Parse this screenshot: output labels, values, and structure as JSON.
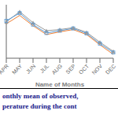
{
  "chart_data": {
    "type": "line",
    "xlabel": "Name of Months",
    "categories": [
      "APR",
      "MAY",
      "JUN",
      "JUL",
      "AUG",
      "SEP",
      "OCT",
      "NOV",
      "DEC"
    ],
    "series": [
      {
        "color": "#999999",
        "marker": "triangle",
        "values": [
          28.5,
          31.2,
          28.3,
          26.2,
          26.5,
          27.0,
          25.8,
          23.2,
          20.8
        ]
      },
      {
        "color": "#5b9bd5",
        "marker": "square",
        "values": [
          28.8,
          30.8,
          27.8,
          25.6,
          26.2,
          26.8,
          25.5,
          22.8,
          20.5
        ]
      },
      {
        "color": "#ed7d31",
        "values": [
          28.0,
          30.2,
          27.5,
          25.2,
          25.9,
          26.5,
          25.2,
          22.5,
          20.0
        ]
      }
    ],
    "ylim": [
      19,
      33
    ],
    "tick_labels": "x",
    "grid": false,
    "annotations": [
      "onthly mean of observed,",
      "perature during the cont"
    ]
  }
}
